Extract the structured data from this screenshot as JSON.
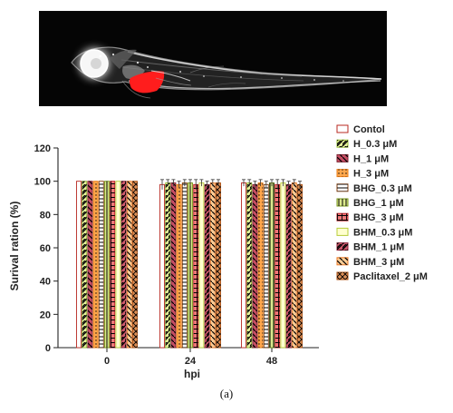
{
  "figure": {
    "caption": "(a)"
  },
  "image": {
    "description_icon": "zebrafish-larva-fluorescence-photo",
    "highlight_color": "#ff1d1d"
  },
  "chart_data": {
    "type": "bar",
    "categories": [
      "0",
      "24",
      "48"
    ],
    "title": "",
    "xlabel": "hpi",
    "ylabel": "Surival ration (%)",
    "ylim": [
      0,
      120
    ],
    "yticks": [
      0,
      20,
      40,
      60,
      80,
      100,
      120
    ],
    "grid": false,
    "legend_position": "right",
    "series": [
      {
        "name": "Contol",
        "values": [
          100,
          98,
          99
        ],
        "errors": [
          0,
          3,
          2
        ],
        "color": "#b82820",
        "fill": "#ffffff",
        "pattern": "solid"
      },
      {
        "name": "H_0.3 μM",
        "values": [
          100,
          99,
          99
        ],
        "errors": [
          0,
          2,
          2
        ],
        "color": "#9ac13b",
        "fill": "#e5f09a",
        "pattern": "diag"
      },
      {
        "name": "H_1 μM",
        "values": [
          100,
          99,
          98
        ],
        "errors": [
          0,
          2,
          2
        ],
        "color": "#7d2230",
        "fill": "#c64e64",
        "pattern": "diag-rev"
      },
      {
        "name": "H_3 μM",
        "values": [
          100,
          98,
          99
        ],
        "errors": [
          0,
          2,
          2
        ],
        "color": "#ed7f16",
        "fill": "#ffa74d",
        "pattern": "dots"
      },
      {
        "name": "BHG_0.3 μM",
        "values": [
          100,
          99,
          98
        ],
        "errors": [
          0,
          2,
          2
        ],
        "color": "#8b4513",
        "fill": "#ffffff",
        "pattern": "hline"
      },
      {
        "name": "BHG_1 μM",
        "values": [
          100,
          99,
          99
        ],
        "errors": [
          0,
          2,
          2
        ],
        "color": "#77951c",
        "fill": "#dbe98d",
        "pattern": "vline"
      },
      {
        "name": "BHG_3 μM",
        "values": [
          100,
          98,
          98
        ],
        "errors": [
          0,
          3,
          3
        ],
        "color": "#be1d24",
        "fill": "#ef7a7a",
        "pattern": "grid"
      },
      {
        "name": "BHM_0.3 μM",
        "values": [
          100,
          99,
          99
        ],
        "errors": [
          0,
          2,
          2
        ],
        "color": "#b7cc3a",
        "fill": "#ffffcf",
        "pattern": "solid"
      },
      {
        "name": "BHM_1 μM",
        "values": [
          100,
          98,
          98
        ],
        "errors": [
          0,
          2,
          2
        ],
        "color": "#8c2238",
        "fill": "#cf5a6d",
        "pattern": "diag"
      },
      {
        "name": "BHM_3 μM",
        "values": [
          100,
          99,
          99
        ],
        "errors": [
          0,
          2,
          2
        ],
        "color": "#eb7a26",
        "fill": "#ffcc95",
        "pattern": "diag-rev"
      },
      {
        "name": "Paclitaxel_2 μM",
        "values": [
          100,
          99,
          98
        ],
        "errors": [
          0,
          2,
          2
        ],
        "color": "#aa4f12",
        "fill": "#dc8f57",
        "pattern": "cross"
      }
    ]
  }
}
